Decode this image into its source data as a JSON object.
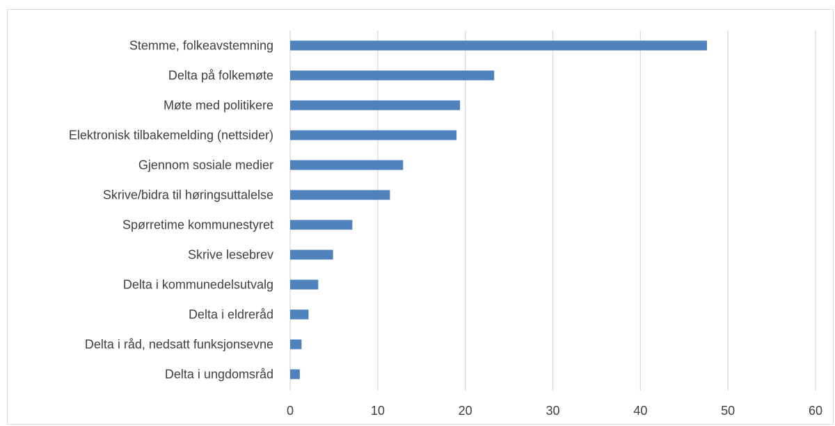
{
  "chart_data": {
    "type": "bar",
    "orientation": "horizontal",
    "title": "",
    "xlabel": "",
    "ylabel": "",
    "categories": [
      "Stemme, folkeavstemning",
      "Delta på folkemøte",
      "Møte med politikere",
      "Elektronisk tilbakemelding (nettsider)",
      "Gjennom sosiale medier",
      "Skrive/bidra til høringsuttalelse",
      "Spørretime kommunestyret",
      "Skrive lesebrev",
      "Delta i kommunedelsutvalg",
      "Delta i eldreråd",
      "Delta i råd, nedsatt funksjonsevne",
      "Delta i ungdomsråd"
    ],
    "values": [
      47.6,
      23.3,
      19.4,
      19.0,
      12.9,
      11.4,
      7.1,
      4.9,
      3.2,
      2.1,
      1.3,
      1.1
    ],
    "xlim": [
      0,
      60
    ],
    "ticks": [
      0,
      10,
      20,
      30,
      40,
      50,
      60
    ],
    "tick_labels": [
      "0",
      "10",
      "20",
      "30",
      "40",
      "50",
      "60"
    ],
    "grid": "vertical",
    "legend": "none",
    "bar_color": "#4f81bd",
    "grid_color": "#d9d9d9",
    "text_color": "#404040"
  }
}
